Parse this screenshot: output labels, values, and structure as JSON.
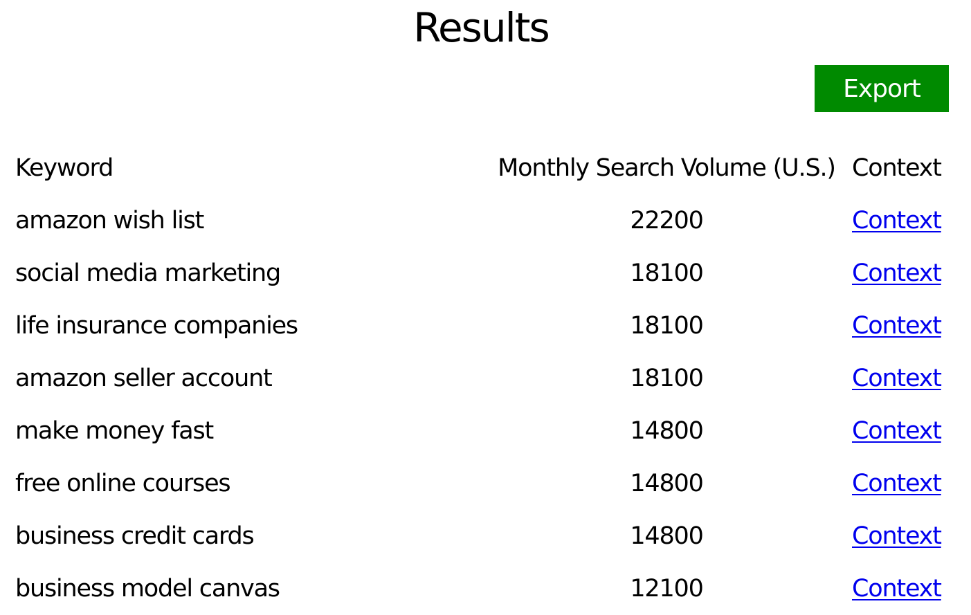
{
  "page": {
    "title": "Results"
  },
  "toolbar": {
    "export_label": "Export",
    "export_color": "#008a00"
  },
  "table": {
    "headers": {
      "keyword": "Keyword",
      "volume": "Monthly Search Volume (U.S.)",
      "context": "Context"
    },
    "rows": [
      {
        "keyword": "amazon wish list",
        "volume": "22200",
        "context": "Context"
      },
      {
        "keyword": "social media marketing",
        "volume": "18100",
        "context": "Context"
      },
      {
        "keyword": "life insurance companies",
        "volume": "18100",
        "context": "Context"
      },
      {
        "keyword": "amazon seller account",
        "volume": "18100",
        "context": "Context"
      },
      {
        "keyword": "make money fast",
        "volume": "14800",
        "context": "Context"
      },
      {
        "keyword": "free online courses",
        "volume": "14800",
        "context": "Context"
      },
      {
        "keyword": "business credit cards",
        "volume": "14800",
        "context": "Context"
      },
      {
        "keyword": "business model canvas",
        "volume": "12100",
        "context": "Context"
      }
    ],
    "link_color": "#0000ee"
  }
}
